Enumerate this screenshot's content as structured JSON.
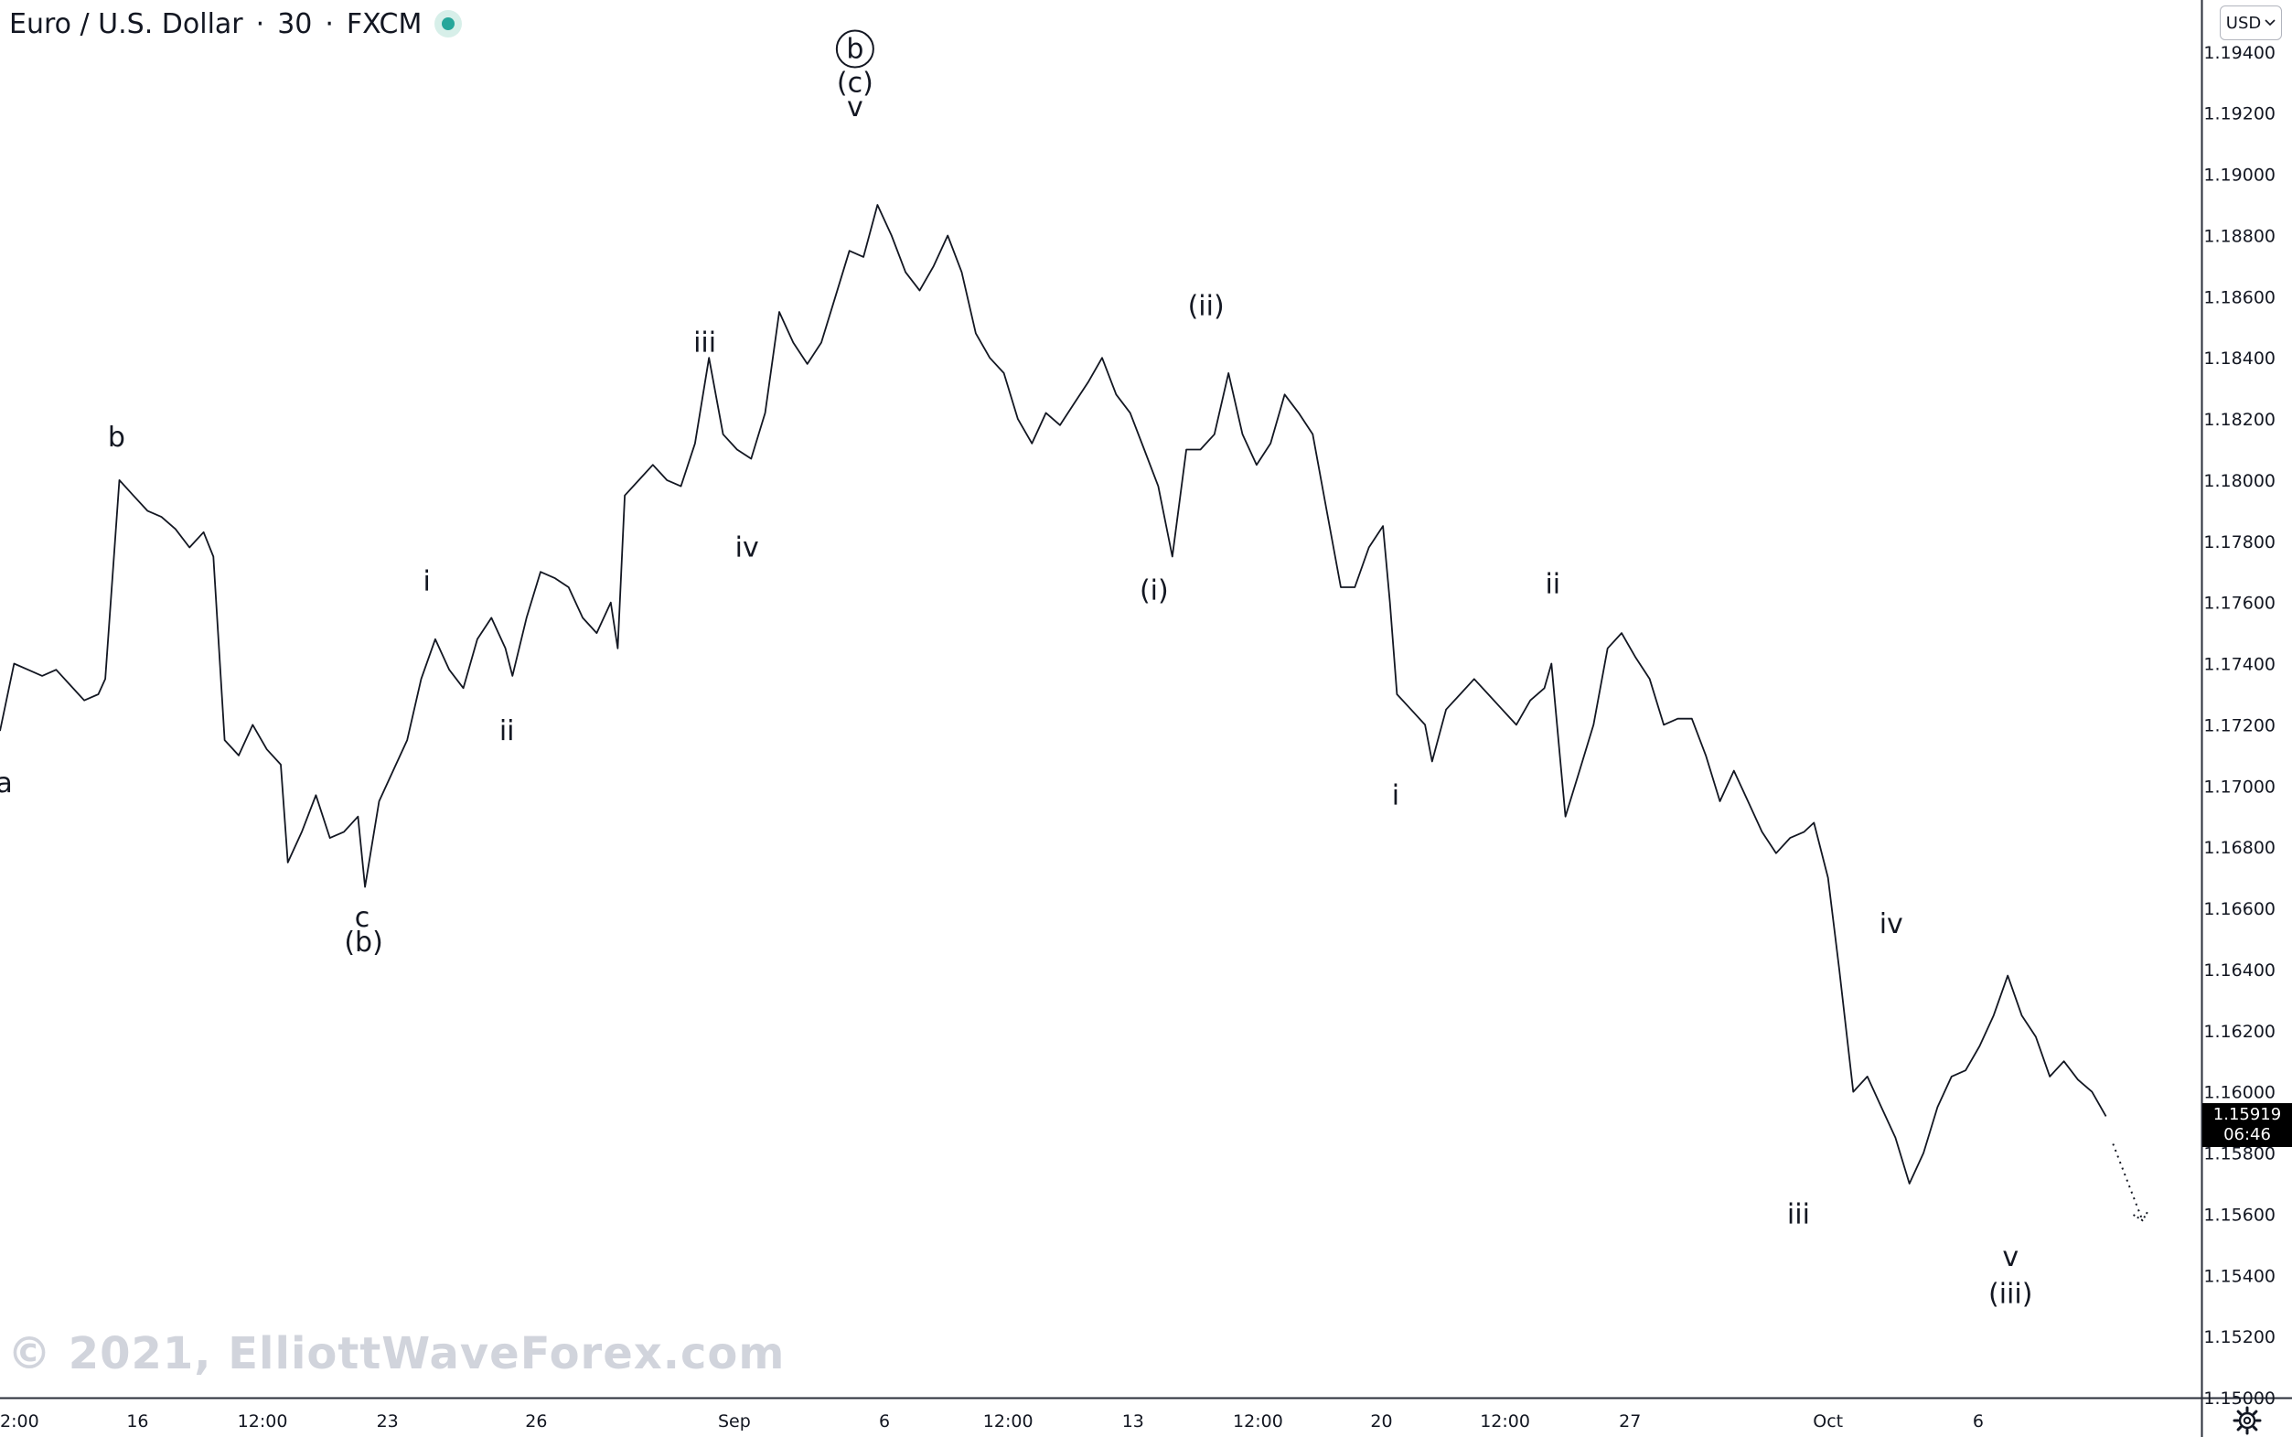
{
  "header": {
    "symbol": "Euro / U.S. Dollar",
    "separator1": "·",
    "interval": "30",
    "separator2": "·",
    "exchange": "FXCM",
    "currency_button": "USD",
    "status_color": "#26a69a"
  },
  "watermark": "© 2021, ElliottWaveForex.com",
  "last_price": {
    "value": "1.15919",
    "countdown": "06:46"
  },
  "icons": {
    "settings": "gear-icon",
    "currency_dropdown": "chevron-down-icon",
    "status": "market-status-icon"
  },
  "chart_data": {
    "type": "line",
    "y_axis": {
      "ticks": [
        "1.15000",
        "1.15200",
        "1.15400",
        "1.15600",
        "1.15800",
        "1.16000",
        "1.16200",
        "1.16400",
        "1.16600",
        "1.16800",
        "1.17000",
        "1.17200",
        "1.17400",
        "1.17600",
        "1.17800",
        "1.18000",
        "1.18200",
        "1.18400",
        "1.18600",
        "1.18800",
        "1.19000",
        "1.19200",
        "1.19400"
      ],
      "range": [
        1.15,
        1.1957
      ],
      "position": "right"
    },
    "x_axis": {
      "ticks": [
        {
          "label": "2:00",
          "t": 0
        },
        {
          "label": "16",
          "t": 9.8
        },
        {
          "label": "12:00",
          "t": 18.7
        },
        {
          "label": "23",
          "t": 27.6
        },
        {
          "label": "26",
          "t": 38.2
        },
        {
          "label": "Sep",
          "t": 52.3
        },
        {
          "label": "6",
          "t": 63.0
        },
        {
          "label": "12:00",
          "t": 71.8
        },
        {
          "label": "13",
          "t": 80.7
        },
        {
          "label": "12:00",
          "t": 89.6
        },
        {
          "label": "20",
          "t": 98.4
        },
        {
          "label": "12:00",
          "t": 107.2
        },
        {
          "label": "27",
          "t": 116.1
        },
        {
          "label": "Oct",
          "t": 130.2
        },
        {
          "label": "6",
          "t": 140.9
        }
      ],
      "range": [
        0,
        156.8
      ]
    },
    "series": [
      {
        "points": [
          [
            0,
            1.1718
          ],
          [
            1,
            1.174
          ],
          [
            2,
            1.1738
          ],
          [
            3,
            1.1736
          ],
          [
            4,
            1.1738
          ],
          [
            5,
            1.1733
          ],
          [
            6,
            1.1728
          ],
          [
            7,
            1.173
          ],
          [
            7.5,
            1.1735
          ],
          [
            8.5,
            1.18
          ],
          [
            9.5,
            1.1795
          ],
          [
            10.5,
            1.179
          ],
          [
            11.5,
            1.1788
          ],
          [
            12.5,
            1.1784
          ],
          [
            13.5,
            1.1778
          ],
          [
            14.5,
            1.1783
          ],
          [
            15.2,
            1.1775
          ],
          [
            16,
            1.1715
          ],
          [
            17,
            1.171
          ],
          [
            18,
            1.172
          ],
          [
            19,
            1.1712
          ],
          [
            20,
            1.1707
          ],
          [
            20.5,
            1.1675
          ],
          [
            21.5,
            1.1685
          ],
          [
            22.5,
            1.1697
          ],
          [
            23.5,
            1.1683
          ],
          [
            24.5,
            1.1685
          ],
          [
            25.5,
            1.169
          ],
          [
            26,
            1.1667
          ],
          [
            27,
            1.1695
          ],
          [
            28,
            1.1705
          ],
          [
            29,
            1.1715
          ],
          [
            30,
            1.1735
          ],
          [
            31,
            1.1748
          ],
          [
            32,
            1.1738
          ],
          [
            33,
            1.1732
          ],
          [
            34,
            1.1748
          ],
          [
            35,
            1.1755
          ],
          [
            36,
            1.1745
          ],
          [
            36.5,
            1.1736
          ],
          [
            37.5,
            1.1755
          ],
          [
            38.5,
            1.177
          ],
          [
            39.5,
            1.1768
          ],
          [
            40.5,
            1.1765
          ],
          [
            41.5,
            1.1755
          ],
          [
            42.5,
            1.175
          ],
          [
            43.5,
            1.176
          ],
          [
            44,
            1.1745
          ],
          [
            44.5,
            1.1795
          ],
          [
            45.5,
            1.18
          ],
          [
            46.5,
            1.1805
          ],
          [
            47.5,
            1.18
          ],
          [
            48.5,
            1.1798
          ],
          [
            49.5,
            1.1812
          ],
          [
            50.5,
            1.184
          ],
          [
            51.5,
            1.1815
          ],
          [
            52.5,
            1.181
          ],
          [
            53.5,
            1.1807
          ],
          [
            54.5,
            1.1822
          ],
          [
            55.5,
            1.1855
          ],
          [
            56.5,
            1.1845
          ],
          [
            57.5,
            1.1838
          ],
          [
            58.5,
            1.1845
          ],
          [
            59.5,
            1.186
          ],
          [
            60.5,
            1.1875
          ],
          [
            61.5,
            1.1873
          ],
          [
            62.5,
            1.189
          ],
          [
            63.5,
            1.188
          ],
          [
            64.5,
            1.1868
          ],
          [
            65.5,
            1.1862
          ],
          [
            66.5,
            1.187
          ],
          [
            67.5,
            1.188
          ],
          [
            68.5,
            1.1868
          ],
          [
            69.5,
            1.1848
          ],
          [
            70.5,
            1.184
          ],
          [
            71.5,
            1.1835
          ],
          [
            72.5,
            1.182
          ],
          [
            73.5,
            1.1812
          ],
          [
            74.5,
            1.1822
          ],
          [
            75.5,
            1.1818
          ],
          [
            76.5,
            1.1825
          ],
          [
            77.5,
            1.1832
          ],
          [
            78.5,
            1.184
          ],
          [
            79.5,
            1.1828
          ],
          [
            80.5,
            1.1822
          ],
          [
            81.5,
            1.181
          ],
          [
            82.5,
            1.1798
          ],
          [
            83.5,
            1.1775
          ],
          [
            84.5,
            1.181
          ],
          [
            85.5,
            1.181
          ],
          [
            86.5,
            1.1815
          ],
          [
            87.5,
            1.1835
          ],
          [
            88.5,
            1.1815
          ],
          [
            89.5,
            1.1805
          ],
          [
            90.5,
            1.1812
          ],
          [
            91.5,
            1.1828
          ],
          [
            92.5,
            1.1822
          ],
          [
            93.5,
            1.1815
          ],
          [
            94.5,
            1.179
          ],
          [
            95.5,
            1.1765
          ],
          [
            96.5,
            1.1765
          ],
          [
            97.5,
            1.1778
          ],
          [
            98.5,
            1.1785
          ],
          [
            99,
            1.176
          ],
          [
            99.5,
            1.173
          ],
          [
            100.5,
            1.1725
          ],
          [
            101.5,
            1.172
          ],
          [
            102,
            1.1708
          ],
          [
            103,
            1.1725
          ],
          [
            104,
            1.173
          ],
          [
            105,
            1.1735
          ],
          [
            106,
            1.173
          ],
          [
            107,
            1.1725
          ],
          [
            108,
            1.172
          ],
          [
            109,
            1.1728
          ],
          [
            110,
            1.1732
          ],
          [
            110.5,
            1.174
          ],
          [
            111.5,
            1.169
          ],
          [
            112.5,
            1.1705
          ],
          [
            113.5,
            1.172
          ],
          [
            114.5,
            1.1745
          ],
          [
            115.5,
            1.175
          ],
          [
            116.5,
            1.1742
          ],
          [
            117.5,
            1.1735
          ],
          [
            118.5,
            1.172
          ],
          [
            119.5,
            1.1722
          ],
          [
            120.5,
            1.1722
          ],
          [
            121.5,
            1.171
          ],
          [
            122.5,
            1.1695
          ],
          [
            123.5,
            1.1705
          ],
          [
            124.5,
            1.1695
          ],
          [
            125.5,
            1.1685
          ],
          [
            126.5,
            1.1678
          ],
          [
            127.5,
            1.1683
          ],
          [
            128.5,
            1.1685
          ],
          [
            129.2,
            1.1688
          ],
          [
            130.2,
            1.167
          ],
          [
            131,
            1.164
          ],
          [
            132,
            1.16
          ],
          [
            133,
            1.1605
          ],
          [
            134,
            1.1595
          ],
          [
            135,
            1.1585
          ],
          [
            136,
            1.157
          ],
          [
            137,
            1.158
          ],
          [
            138,
            1.1595
          ],
          [
            139,
            1.1605
          ],
          [
            140,
            1.1607
          ],
          [
            141,
            1.1615
          ],
          [
            142,
            1.1625
          ],
          [
            143,
            1.1638
          ],
          [
            144,
            1.1625
          ],
          [
            145,
            1.1618
          ],
          [
            146,
            1.1605
          ],
          [
            147,
            1.161
          ],
          [
            148,
            1.1604
          ],
          [
            149,
            1.16
          ],
          [
            150,
            1.1592
          ]
        ]
      },
      {
        "style": "dotted",
        "points": [
          [
            150.5,
            1.1583
          ],
          [
            152.6,
            1.1558
          ]
        ]
      }
    ],
    "annotations": [
      {
        "text": "a",
        "t": 0.3,
        "y": 1.1698
      },
      {
        "text": "b",
        "t": 8.3,
        "y": 1.1811
      },
      {
        "text": "c",
        "t": 25.8,
        "y": 1.1654
      },
      {
        "text": "(b)",
        "t": 25.9,
        "y": 1.1646
      },
      {
        "text": "i",
        "t": 30.4,
        "y": 1.1764
      },
      {
        "text": "ii",
        "t": 36.1,
        "y": 1.1715
      },
      {
        "text": "iii",
        "t": 50.2,
        "y": 1.1842
      },
      {
        "text": "iv",
        "t": 53.2,
        "y": 1.1775
      },
      {
        "text": "v",
        "t": 60.9,
        "y": 1.1919
      },
      {
        "text": "(c)",
        "t": 60.9,
        "y": 1.1927
      },
      {
        "text": "b",
        "t": 60.9,
        "y": 1.1938,
        "circled": true
      },
      {
        "text": "(ii)",
        "t": 85.9,
        "y": 1.1854
      },
      {
        "text": "(i)",
        "t": 82.2,
        "y": 1.1761
      },
      {
        "text": "i",
        "t": 99.4,
        "y": 1.1694
      },
      {
        "text": "ii",
        "t": 110.6,
        "y": 1.1763
      },
      {
        "text": "iv",
        "t": 134.7,
        "y": 1.1652
      },
      {
        "text": "iii",
        "t": 128.1,
        "y": 1.1557
      },
      {
        "text": "v",
        "t": 143.2,
        "y": 1.1543
      },
      {
        "text": "(iii)",
        "t": 143.2,
        "y": 1.1531
      }
    ]
  }
}
